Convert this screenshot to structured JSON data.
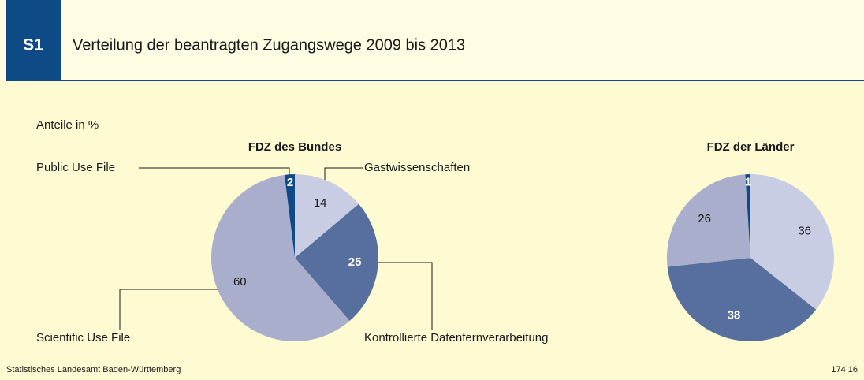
{
  "header": {
    "code": "S1",
    "title": "Verteilung der beantragten Zugangswege 2009 bis 2013"
  },
  "chart_data": [
    {
      "type": "pie",
      "title": "FDZ des Bundes",
      "subtitle": "Anteile in %",
      "categories": [
        "Gastwissenschaften",
        "Kontrollierte Datenfernverarbeitung",
        "Scientific Use File",
        "Public Use File"
      ],
      "values": [
        14,
        25,
        60,
        2
      ],
      "colors": [
        "#c9cde3",
        "#566f9e",
        "#a8aecc",
        "#0d4a86"
      ]
    },
    {
      "type": "pie",
      "title": "FDZ der Länder",
      "values": [
        36,
        38,
        26,
        1
      ],
      "colors": [
        "#c9cde3",
        "#566f9e",
        "#a8aecc",
        "#0d4a86"
      ]
    }
  ],
  "footer": {
    "source": "Statistisches Landesamt Baden-Württemberg",
    "id": "174 16"
  }
}
